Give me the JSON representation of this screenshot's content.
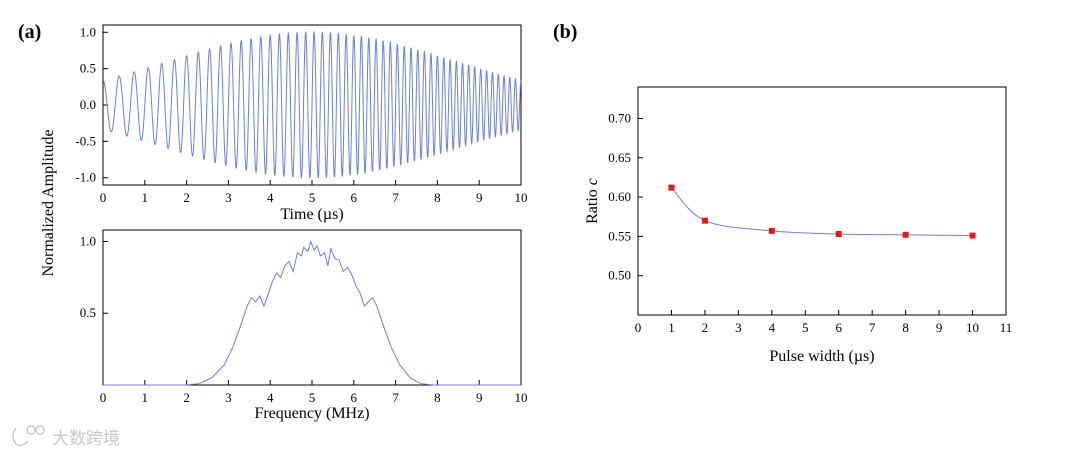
{
  "panels": {
    "a_label": "(a)",
    "b_label": "(b)",
    "shared_ylabel": "Normalized Amplitude"
  },
  "watermark": {
    "text": "大数跨境"
  },
  "colors": {
    "trace": "#6b7fdc",
    "marker": "#e01b1b",
    "axis": "#000000"
  },
  "chart_data": [
    {
      "id": "time_signal",
      "type": "line",
      "xlabel": "Time (µs)",
      "ylabel": "Normalized Amplitude",
      "xlim": [
        0,
        10
      ],
      "ylim": [
        -1.1,
        1.1
      ],
      "xticks": [
        "0",
        "1",
        "2",
        "3",
        "4",
        "5",
        "6",
        "7",
        "8",
        "9",
        "10"
      ],
      "yticks": [
        {
          "value": 1.0,
          "label": "1.0"
        },
        {
          "value": 0.5,
          "label": "0.5"
        },
        {
          "value": 0.0,
          "label": "0.0"
        },
        {
          "value": -0.5,
          "label": "-0.5"
        },
        {
          "value": -1.0,
          "label": "-1.0"
        }
      ],
      "signal": {
        "description": "Gaussian-windowed linear chirp",
        "envelope_center_us": 5,
        "envelope_sigma_us": 3.4,
        "f_start_mhz": 2.5,
        "f_end_mhz": 7.5,
        "cycles_total": 50
      }
    },
    {
      "id": "spectrum",
      "type": "line",
      "xlabel": "Frequency (MHz)",
      "xlim": [
        0,
        10
      ],
      "ylim": [
        0,
        1.08
      ],
      "xticks": [
        "0",
        "1",
        "2",
        "3",
        "4",
        "5",
        "6",
        "7",
        "8",
        "9",
        "10"
      ],
      "yticks": [
        {
          "value": 1.0,
          "label": "1.0"
        },
        {
          "value": 0.5,
          "label": "0.5"
        }
      ],
      "points": [
        [
          0,
          0
        ],
        [
          2,
          0
        ],
        [
          2.3,
          0.01
        ],
        [
          2.6,
          0.05
        ],
        [
          2.9,
          0.14
        ],
        [
          3.1,
          0.26
        ],
        [
          3.3,
          0.42
        ],
        [
          3.45,
          0.55
        ],
        [
          3.55,
          0.61
        ],
        [
          3.65,
          0.58
        ],
        [
          3.75,
          0.62
        ],
        [
          3.85,
          0.55
        ],
        [
          3.95,
          0.63
        ],
        [
          4.05,
          0.72
        ],
        [
          4.15,
          0.78
        ],
        [
          4.25,
          0.75
        ],
        [
          4.35,
          0.83
        ],
        [
          4.45,
          0.86
        ],
        [
          4.55,
          0.79
        ],
        [
          4.65,
          0.92
        ],
        [
          4.75,
          0.9
        ],
        [
          4.8,
          0.96
        ],
        [
          4.9,
          0.93
        ],
        [
          4.97,
          1.0
        ],
        [
          5.05,
          0.94
        ],
        [
          5.12,
          0.97
        ],
        [
          5.2,
          0.9
        ],
        [
          5.3,
          0.92
        ],
        [
          5.38,
          0.83
        ],
        [
          5.45,
          0.95
        ],
        [
          5.55,
          0.88
        ],
        [
          5.65,
          0.87
        ],
        [
          5.75,
          0.79
        ],
        [
          5.85,
          0.82
        ],
        [
          5.95,
          0.77
        ],
        [
          6.05,
          0.69
        ],
        [
          6.15,
          0.64
        ],
        [
          6.25,
          0.55
        ],
        [
          6.35,
          0.58
        ],
        [
          6.45,
          0.61
        ],
        [
          6.55,
          0.55
        ],
        [
          6.7,
          0.42
        ],
        [
          6.9,
          0.26
        ],
        [
          7.1,
          0.14
        ],
        [
          7.35,
          0.05
        ],
        [
          7.6,
          0.01
        ],
        [
          7.9,
          0
        ],
        [
          10,
          0
        ]
      ]
    },
    {
      "id": "ratio_vs_width",
      "type": "line",
      "xlabel": "Pulse width (µs)",
      "ylabel_prefix": "Ratio ",
      "ylabel_var": "c",
      "xlim": [
        0,
        11
      ],
      "ylim": [
        0.45,
        0.74
      ],
      "xticks": [
        "0",
        "1",
        "2",
        "3",
        "4",
        "5",
        "6",
        "7",
        "8",
        "9",
        "10",
        "11"
      ],
      "yticks": [
        {
          "value": 0.7,
          "label": "0.70"
        },
        {
          "value": 0.65,
          "label": "0.65"
        },
        {
          "value": 0.6,
          "label": "0.60"
        },
        {
          "value": 0.55,
          "label": "0.55"
        },
        {
          "value": 0.5,
          "label": "0.50"
        }
      ],
      "x": [
        1,
        2,
        4,
        6,
        8,
        10
      ],
      "y": [
        0.612,
        0.57,
        0.557,
        0.553,
        0.552,
        0.551
      ]
    }
  ]
}
